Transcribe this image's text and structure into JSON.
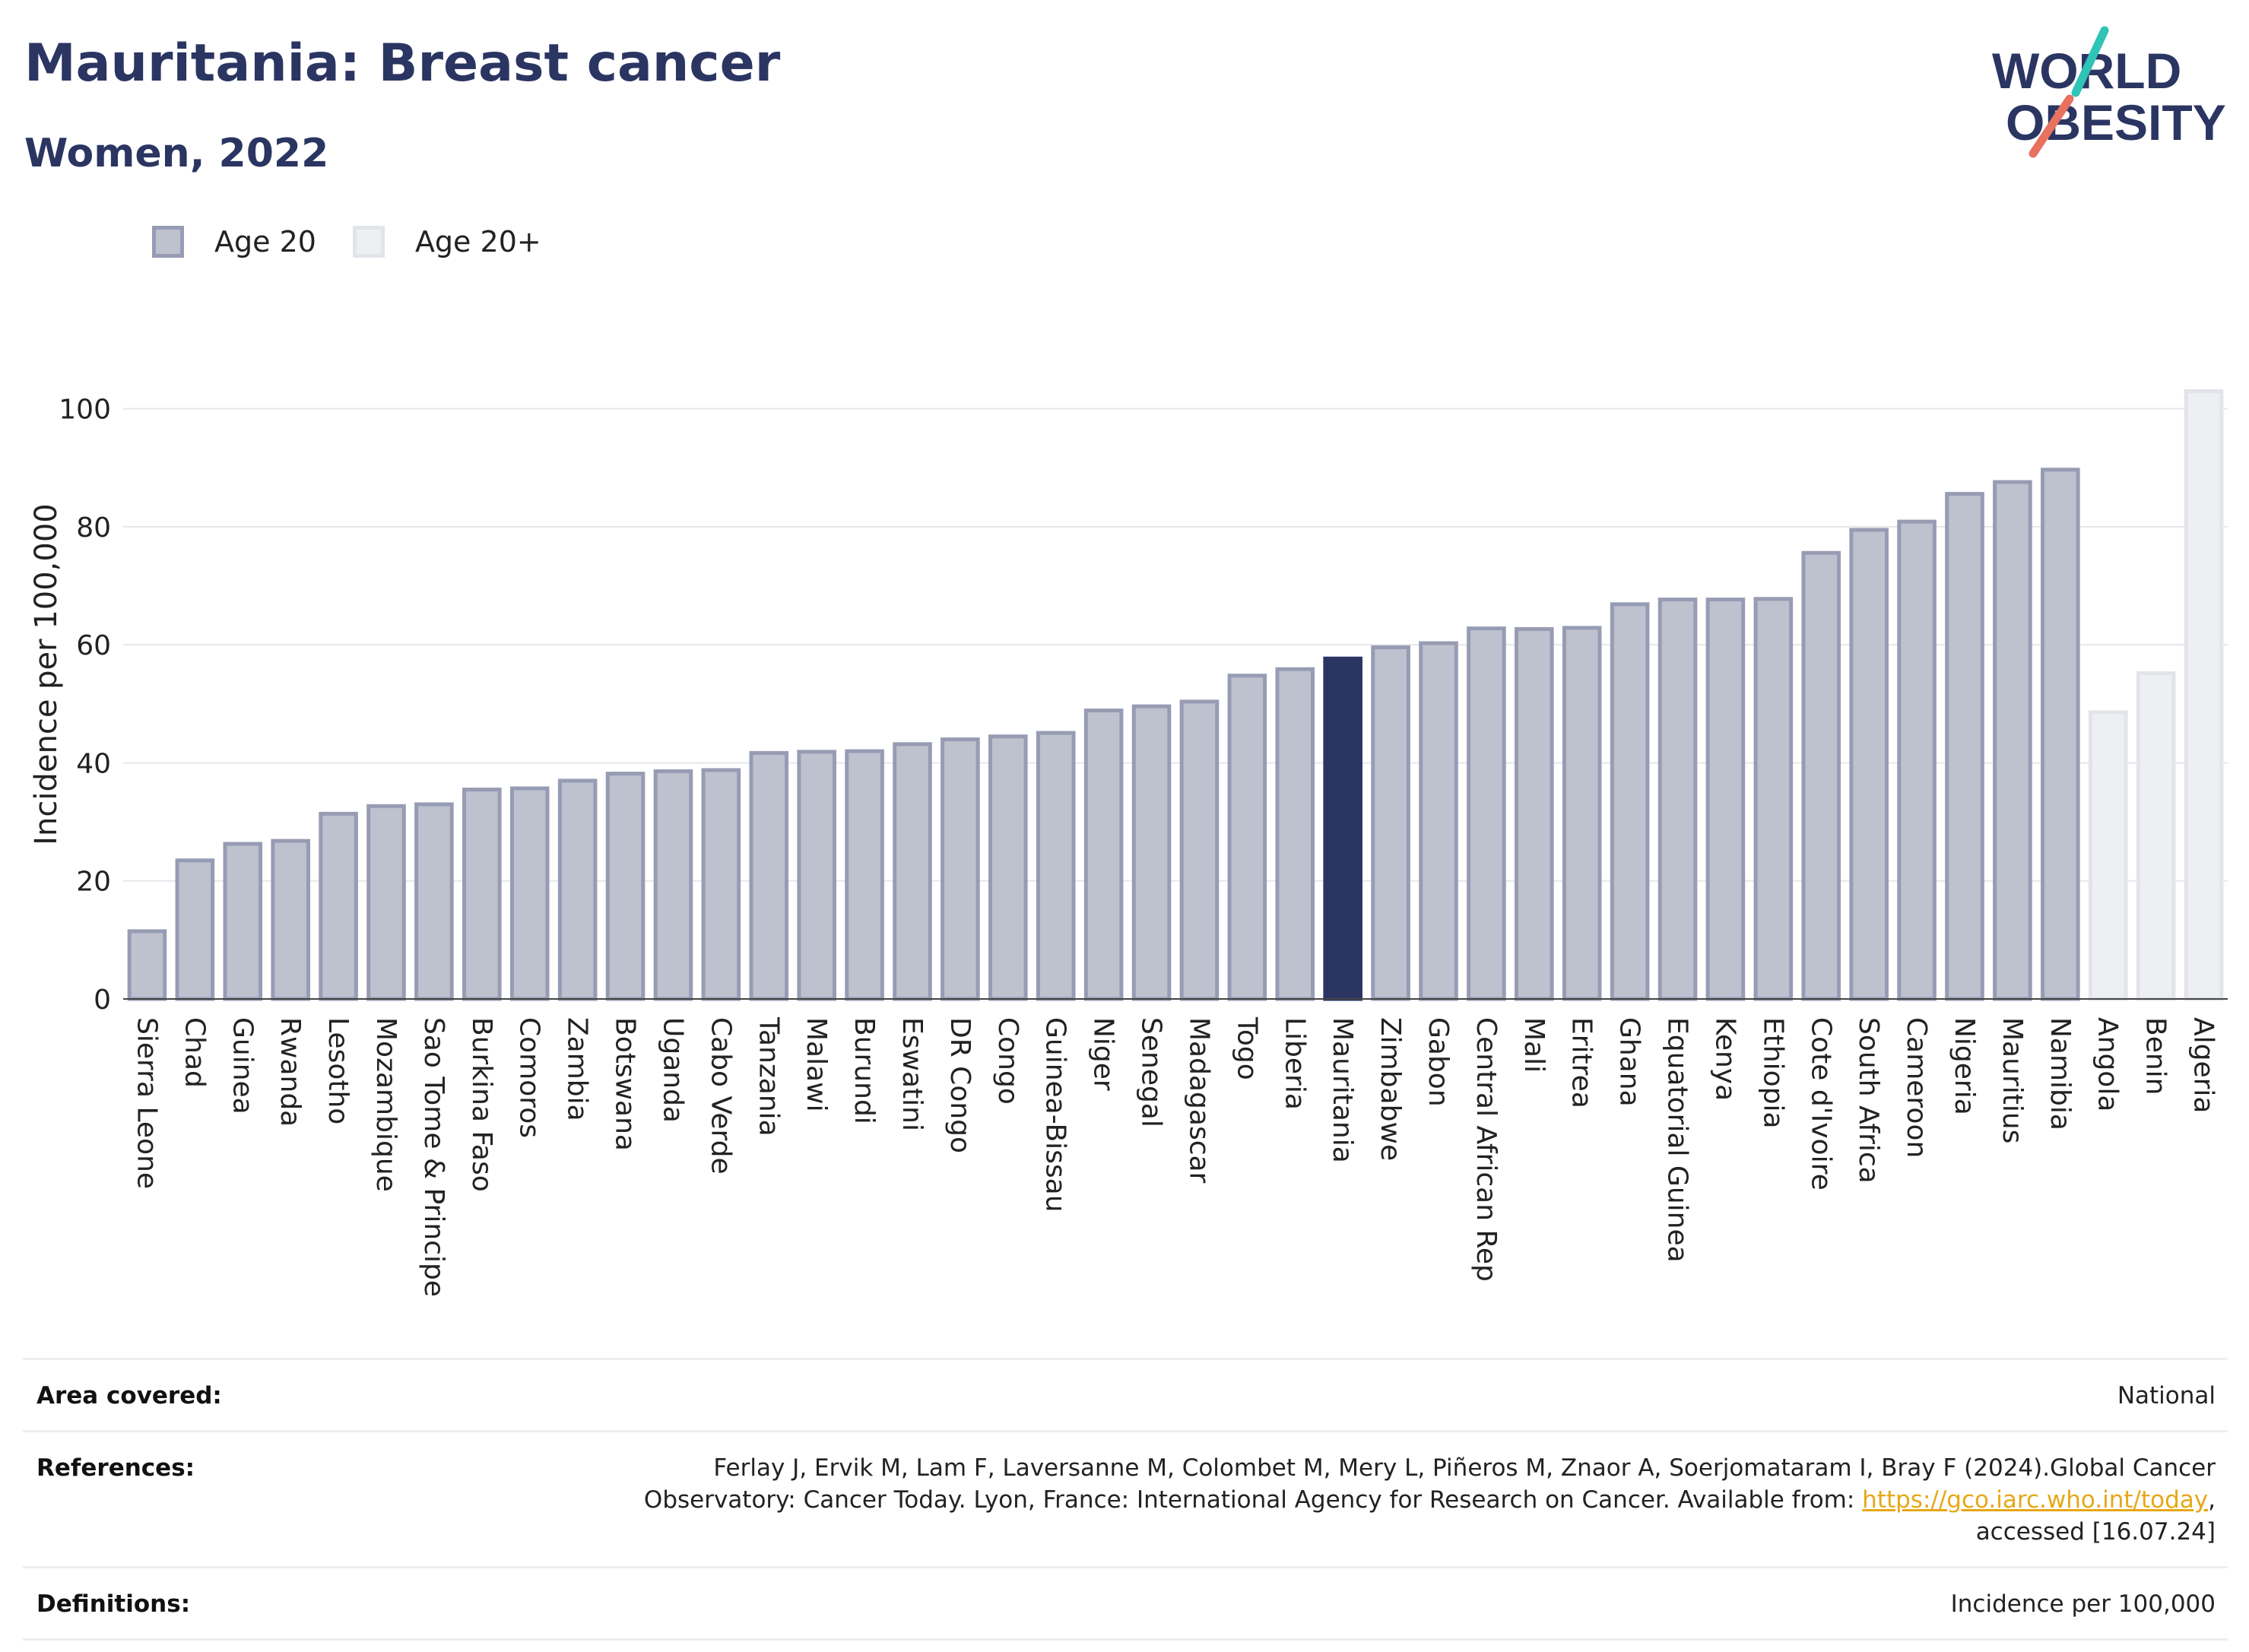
{
  "header": {
    "title": "Mauritania: Breast cancer",
    "subtitle": "Women, 2022"
  },
  "logo": {
    "line1": "WORLD",
    "line2": "OBESITY",
    "colors": {
      "text": "#2b3562",
      "teal": "#2ec4b6",
      "coral": "#e8715f"
    }
  },
  "legend": {
    "items": [
      {
        "label": "Age 20",
        "color": "#bec1ce"
      },
      {
        "label": "Age 20+",
        "color": "#eeeff3"
      }
    ]
  },
  "chart_data": {
    "type": "bar",
    "ylabel": "Incidence per 100,000",
    "ylim": [
      0,
      110
    ],
    "yticks": [
      0,
      20,
      40,
      60,
      80,
      100
    ],
    "grid": true,
    "legend_position": "top-left",
    "highlight": "Mauritania",
    "colors": {
      "age20": "#bec1ce",
      "age20_border": "#979cb4",
      "age20plus": "#eeeff3",
      "age20plus_border": "#e2e4ea",
      "highlight": "#2b3562"
    },
    "categories": [
      "Sierra Leone",
      "Chad",
      "Guinea",
      "Rwanda",
      "Lesotho",
      "Mozambique",
      "Sao Tome & Principe",
      "Burkina Faso",
      "Comoros",
      "Zambia",
      "Botswana",
      "Uganda",
      "Cabo Verde",
      "Tanzania",
      "Malawi",
      "Burundi",
      "Eswatini",
      "DR Congo",
      "Congo",
      "Guinea-Bissau",
      "Niger",
      "Senegal",
      "Madagascar",
      "Togo",
      "Liberia",
      "Mauritania",
      "Zimbabwe",
      "Gabon",
      "Central African Rep",
      "Mali",
      "Eritrea",
      "Ghana",
      "Equatorial Guinea",
      "Kenya",
      "Ethiopia",
      "Cote d'Ivoire",
      "South Africa",
      "Cameroon",
      "Nigeria",
      "Mauritius",
      "Namibia",
      "Angola",
      "Benin",
      "Algeria"
    ],
    "values": [
      11.8,
      23.8,
      26.6,
      27.1,
      31.7,
      33.0,
      33.3,
      35.8,
      36.0,
      37.3,
      38.5,
      38.9,
      39.1,
      42.0,
      42.2,
      42.3,
      43.5,
      44.3,
      44.8,
      45.4,
      49.2,
      49.9,
      50.7,
      55.1,
      56.2,
      58.0,
      59.9,
      60.6,
      63.1,
      63.0,
      63.2,
      67.2,
      68.0,
      68.0,
      68.1,
      75.9,
      79.8,
      81.2,
      85.9,
      87.9,
      90.0,
      48.9,
      55.5,
      103.3
    ],
    "groups": [
      "Age 20",
      "Age 20",
      "Age 20",
      "Age 20",
      "Age 20",
      "Age 20",
      "Age 20",
      "Age 20",
      "Age 20",
      "Age 20",
      "Age 20",
      "Age 20",
      "Age 20",
      "Age 20",
      "Age 20",
      "Age 20",
      "Age 20",
      "Age 20",
      "Age 20",
      "Age 20",
      "Age 20",
      "Age 20",
      "Age 20",
      "Age 20",
      "Age 20",
      "Age 20",
      "Age 20",
      "Age 20",
      "Age 20",
      "Age 20",
      "Age 20",
      "Age 20",
      "Age 20",
      "Age 20",
      "Age 20",
      "Age 20",
      "Age 20",
      "Age 20",
      "Age 20",
      "Age 20",
      "Age 20",
      "Age 20+",
      "Age 20+",
      "Age 20+"
    ]
  },
  "info": {
    "area": {
      "label": "Area covered:",
      "value": "National"
    },
    "references": {
      "label": "References:",
      "text_before": "Ferlay J, Ervik M, Lam F, Laversanne M, Colombet M, Mery L, Piñeros M, Znaor A, Soerjomataram I, Bray F (2024).Global Cancer Observatory: Cancer Today. Lyon, France: International Agency for Research on Cancer. Available from: ",
      "link": "https://gco.iarc.who.int/today",
      "text_after": ", accessed [16.07.24]"
    },
    "definitions": {
      "label": "Definitions:",
      "value": "Incidence per 100,000"
    }
  }
}
